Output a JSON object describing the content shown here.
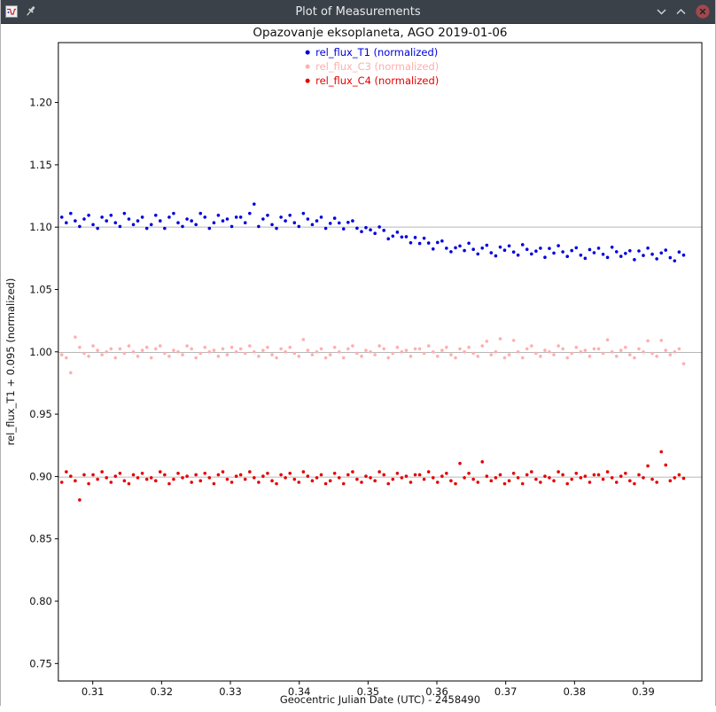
{
  "window": {
    "title": "Plot of Measurements",
    "controls": [
      "chevron-down",
      "chevron-up",
      "close"
    ],
    "titlebar_color": "#3b4148",
    "close_button_color": "#a2494e"
  },
  "chart_data": {
    "type": "scatter",
    "title": "Opazovanje eksoplaneta, AGO 2019-01-06",
    "xlabel": "Geocentric Julian Date (UTC) - 2458490",
    "ylabel": "rel_flux_T1 + 0.095 (normalized)",
    "xlim": [
      0.305,
      0.3985
    ],
    "ylim": [
      0.736,
      1.248
    ],
    "xticks": [
      0.31,
      0.32,
      0.33,
      0.34,
      0.35,
      0.36,
      0.37,
      0.38,
      0.39
    ],
    "yticks": [
      0.75,
      0.8,
      0.85,
      0.9,
      0.95,
      1.0,
      1.05,
      1.1,
      1.15,
      1.2
    ],
    "grid": false,
    "legend_position": "top-center",
    "fit_line_color": "#b8b8b8",
    "x": [
      0.3055,
      0.30615,
      0.3068,
      0.30745,
      0.3081,
      0.30875,
      0.3094,
      0.31005,
      0.3107,
      0.31135,
      0.312,
      0.31265,
      0.3133,
      0.31395,
      0.3146,
      0.31525,
      0.3159,
      0.31655,
      0.3172,
      0.31785,
      0.3185,
      0.31915,
      0.3198,
      0.32045,
      0.3211,
      0.32175,
      0.3224,
      0.32305,
      0.3237,
      0.32435,
      0.325,
      0.32565,
      0.3263,
      0.32695,
      0.3276,
      0.32825,
      0.3289,
      0.32955,
      0.3302,
      0.33085,
      0.3315,
      0.33215,
      0.3328,
      0.33345,
      0.3341,
      0.33475,
      0.3354,
      0.33605,
      0.3367,
      0.33735,
      0.338,
      0.33865,
      0.3393,
      0.33995,
      0.3406,
      0.34125,
      0.3419,
      0.34255,
      0.3432,
      0.34385,
      0.3445,
      0.34515,
      0.3458,
      0.34645,
      0.3471,
      0.34775,
      0.3484,
      0.34905,
      0.3497,
      0.35035,
      0.351,
      0.35165,
      0.3523,
      0.35295,
      0.3536,
      0.35425,
      0.3549,
      0.35555,
      0.3562,
      0.35685,
      0.3575,
      0.35815,
      0.3588,
      0.35945,
      0.3601,
      0.36075,
      0.3614,
      0.36205,
      0.3627,
      0.36335,
      0.364,
      0.36465,
      0.3653,
      0.36595,
      0.3666,
      0.36725,
      0.3679,
      0.36855,
      0.3692,
      0.36985,
      0.3705,
      0.37115,
      0.3718,
      0.37245,
      0.3731,
      0.37375,
      0.3744,
      0.37505,
      0.3757,
      0.37635,
      0.377,
      0.37765,
      0.3783,
      0.37895,
      0.3796,
      0.38025,
      0.3809,
      0.38155,
      0.3822,
      0.38285,
      0.3835,
      0.38415,
      0.3848,
      0.38545,
      0.3861,
      0.38675,
      0.3874,
      0.38805,
      0.3887,
      0.38935,
      0.39,
      0.39065,
      0.3913,
      0.39195,
      0.3926,
      0.39325,
      0.3939,
      0.39455,
      0.3952,
      0.39585
    ],
    "series": [
      {
        "name": "rel_flux_T1 (normalized)",
        "short_name": "rel_flux_T1",
        "color": "#0000e0",
        "fit_line": 1.1,
        "values": [
          1.108,
          1.1035,
          1.111,
          1.105,
          1.1005,
          1.1065,
          1.1095,
          1.102,
          1.099,
          1.108,
          1.105,
          1.1095,
          1.1035,
          1.1005,
          1.111,
          1.1065,
          1.102,
          1.105,
          1.108,
          1.099,
          1.102,
          1.1095,
          1.105,
          1.099,
          1.108,
          1.111,
          1.1035,
          1.1005,
          1.1065,
          1.105,
          1.102,
          1.111,
          1.108,
          1.099,
          1.1035,
          1.1095,
          1.105,
          1.1065,
          1.1005,
          1.108,
          1.108,
          1.1035,
          1.111,
          1.1185,
          1.1005,
          1.1065,
          1.1095,
          1.102,
          1.099,
          1.108,
          1.105,
          1.1095,
          1.1035,
          1.1005,
          1.111,
          1.1065,
          1.102,
          1.105,
          1.108,
          1.099,
          1.103,
          1.1072,
          1.1034,
          1.0986,
          1.1038,
          1.105,
          1.0992,
          1.0964,
          1.0996,
          1.0978,
          1.095,
          1.1002,
          1.0974,
          1.0906,
          1.0928,
          1.096,
          1.0921,
          1.0923,
          1.0875,
          1.0917,
          1.0869,
          1.0911,
          1.0873,
          1.0825,
          1.0877,
          1.0889,
          1.0831,
          1.0803,
          1.0835,
          1.0849,
          1.0812,
          1.0871,
          1.0822,
          1.0785,
          1.0832,
          1.0855,
          1.0794,
          1.0769,
          1.084,
          1.0815,
          1.085,
          1.0801,
          1.0776,
          1.0859,
          1.0822,
          1.0785,
          1.0808,
          1.0831,
          1.0758,
          1.0829,
          1.0792,
          1.0851,
          1.0802,
          1.0765,
          1.0812,
          1.0835,
          1.0775,
          1.075,
          1.082,
          1.0795,
          1.0831,
          1.0782,
          1.0757,
          1.0839,
          1.0803,
          1.0766,
          1.0789,
          1.0811,
          1.0739,
          1.0809,
          1.0773,
          1.0832,
          1.0783,
          1.0746,
          1.0793,
          1.0816,
          1.0755,
          1.073,
          1.0801,
          1.0776
        ]
      },
      {
        "name": "rel_flux_C3 (normalized)",
        "short_name": "rel_flux_C3",
        "color": "#ffafaf",
        "fit_line": 0.9995,
        "values": [
          0.9976,
          0.9952,
          0.9832,
          1.0118,
          1.0036,
          0.9988,
          0.9964,
          1.0048,
          1.0012,
          0.9976,
          1.0,
          1.0024,
          0.9952,
          1.0024,
          0.9988,
          1.0048,
          1.0,
          0.9964,
          1.0012,
          1.0036,
          0.9952,
          1.0024,
          1.0048,
          0.9988,
          0.9964,
          1.0012,
          1.0,
          0.9976,
          1.0048,
          1.0024,
          0.9952,
          0.9988,
          1.0036,
          1.0,
          1.0012,
          0.9964,
          1.0024,
          0.9976,
          1.0036,
          1.0,
          1.0024,
          0.9988,
          1.0048,
          1.0,
          0.9964,
          1.0012,
          1.0036,
          0.9976,
          0.9952,
          1.0024,
          1.0,
          1.0036,
          0.9988,
          0.9964,
          1.0098,
          1.0012,
          0.9976,
          1.0,
          1.0024,
          0.9952,
          0.9976,
          1.0036,
          1.0,
          0.9952,
          1.0024,
          1.0048,
          0.9988,
          0.9964,
          1.0012,
          1.0,
          0.9976,
          1.0048,
          1.0024,
          0.9952,
          0.9988,
          1.0036,
          1.0,
          1.0012,
          0.9964,
          1.0024,
          1.0024,
          0.9988,
          1.0048,
          1.0,
          0.9964,
          1.0012,
          1.0036,
          0.9976,
          0.9952,
          1.0024,
          1.0,
          1.0036,
          0.9988,
          0.9964,
          1.0048,
          1.0085,
          0.9976,
          1.0,
          1.0105,
          0.9952,
          0.9976,
          1.0092,
          1.0,
          0.9952,
          1.0024,
          1.0048,
          0.9988,
          0.9964,
          1.0012,
          1.0,
          0.9976,
          1.0048,
          1.0024,
          0.9952,
          0.9988,
          1.0036,
          1.0,
          1.0012,
          0.9964,
          1.0024,
          1.0024,
          0.9988,
          1.0096,
          1.0,
          0.9964,
          1.0012,
          1.0036,
          0.9976,
          0.9952,
          1.0024,
          1.0,
          1.0088,
          0.9988,
          0.9964,
          1.0092,
          1.0012,
          0.9976,
          1.0,
          1.0024,
          0.9905
        ]
      },
      {
        "name": "rel_flux_C4 (normalized)",
        "short_name": "rel_flux_C4",
        "color": "#e60000",
        "fit_line": 0.8995,
        "values": [
          0.8954,
          0.9038,
          0.9002,
          0.8966,
          0.8812,
          0.9014,
          0.8942,
          0.9014,
          0.8978,
          0.9038,
          0.899,
          0.8954,
          0.9002,
          0.9026,
          0.8966,
          0.8942,
          0.9014,
          0.899,
          0.9026,
          0.8978,
          0.899,
          0.8966,
          0.9038,
          0.9014,
          0.8942,
          0.8978,
          0.9026,
          0.899,
          0.9002,
          0.8954,
          0.9014,
          0.8966,
          0.9026,
          0.899,
          0.8942,
          0.9014,
          0.9038,
          0.8978,
          0.8954,
          0.9002,
          0.9014,
          0.8978,
          0.9038,
          0.899,
          0.8954,
          0.9002,
          0.9026,
          0.8966,
          0.8942,
          0.9014,
          0.899,
          0.9026,
          0.8978,
          0.8954,
          0.9038,
          0.9002,
          0.8966,
          0.899,
          0.9014,
          0.8942,
          0.8966,
          0.9026,
          0.899,
          0.8942,
          0.9014,
          0.9038,
          0.8978,
          0.8954,
          0.9002,
          0.899,
          0.8966,
          0.9038,
          0.9014,
          0.8942,
          0.8978,
          0.9026,
          0.899,
          0.9002,
          0.8954,
          0.9014,
          0.9014,
          0.8978,
          0.9038,
          0.899,
          0.8954,
          0.9002,
          0.9026,
          0.8966,
          0.8942,
          0.9105,
          0.899,
          0.9026,
          0.8978,
          0.8954,
          0.9118,
          0.9002,
          0.8966,
          0.899,
          0.9014,
          0.8942,
          0.8966,
          0.9026,
          0.899,
          0.8942,
          0.9014,
          0.9038,
          0.8978,
          0.8954,
          0.9002,
          0.899,
          0.8966,
          0.9038,
          0.9014,
          0.8942,
          0.8978,
          0.9026,
          0.899,
          0.9002,
          0.8954,
          0.9014,
          0.9014,
          0.8978,
          0.9038,
          0.899,
          0.8954,
          0.9002,
          0.9026,
          0.8966,
          0.8942,
          0.9014,
          0.899,
          0.9085,
          0.8978,
          0.8954,
          0.9198,
          0.9092,
          0.8966,
          0.899,
          0.9014,
          0.8985
        ]
      }
    ]
  }
}
